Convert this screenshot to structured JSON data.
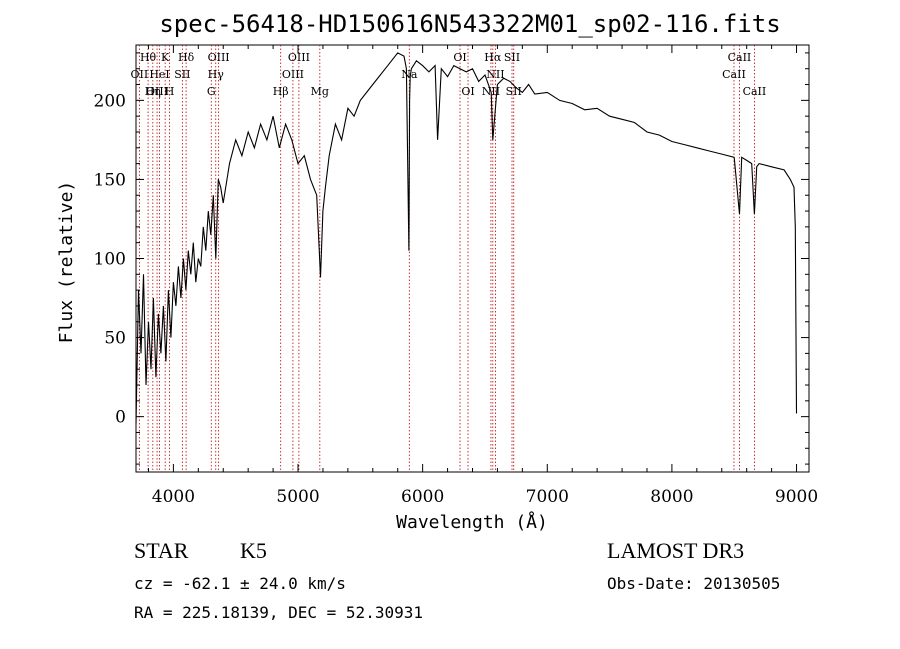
{
  "chart_data": {
    "type": "line",
    "title": "spec-56418-HD150616N543322M01_sp02-116.fits",
    "xlabel": "Wavelength (Å)",
    "ylabel": "Flux (relative)",
    "xlim": [
      3700,
      9100
    ],
    "ylim": [
      -35,
      235
    ],
    "x_ticks": [
      4000,
      5000,
      6000,
      7000,
      8000,
      9000
    ],
    "y_ticks": [
      0,
      50,
      100,
      150,
      200
    ],
    "series": [
      {
        "name": "flux",
        "x": [
          3700,
          3720,
          3740,
          3760,
          3780,
          3800,
          3820,
          3840,
          3860,
          3880,
          3900,
          3920,
          3940,
          3960,
          3980,
          4000,
          4020,
          4040,
          4060,
          4080,
          4100,
          4120,
          4140,
          4160,
          4180,
          4200,
          4220,
          4240,
          4260,
          4280,
          4300,
          4320,
          4340,
          4360,
          4380,
          4400,
          4450,
          4500,
          4550,
          4600,
          4650,
          4700,
          4750,
          4800,
          4850,
          4900,
          4950,
          5000,
          5050,
          5100,
          5150,
          5180,
          5200,
          5220,
          5250,
          5300,
          5350,
          5400,
          5450,
          5500,
          5550,
          5600,
          5650,
          5700,
          5750,
          5800,
          5850,
          5870,
          5890,
          5895,
          5900,
          5910,
          5950,
          6000,
          6050,
          6100,
          6120,
          6150,
          6200,
          6250,
          6300,
          6350,
          6400,
          6450,
          6500,
          6550,
          6563,
          6600,
          6650,
          6700,
          6750,
          6800,
          6850,
          6900,
          7000,
          7100,
          7200,
          7300,
          7400,
          7500,
          7600,
          7700,
          7800,
          7900,
          8000,
          8100,
          8200,
          8300,
          8400,
          8500,
          8542,
          8560,
          8600,
          8640,
          8662,
          8680,
          8700,
          8800,
          8900,
          8950,
          8980,
          8990,
          8995,
          9000
        ],
        "values": [
          -5,
          80,
          40,
          90,
          20,
          60,
          30,
          75,
          25,
          65,
          40,
          70,
          35,
          80,
          50,
          85,
          70,
          95,
          75,
          100,
          80,
          105,
          90,
          110,
          85,
          100,
          95,
          120,
          105,
          130,
          115,
          140,
          100,
          150,
          145,
          135,
          160,
          175,
          165,
          180,
          170,
          185,
          175,
          190,
          170,
          185,
          175,
          160,
          165,
          150,
          140,
          88,
          130,
          145,
          165,
          185,
          175,
          195,
          190,
          200,
          205,
          210,
          215,
          220,
          225,
          230,
          228,
          220,
          105,
          200,
          215,
          220,
          225,
          222,
          218,
          222,
          175,
          220,
          215,
          222,
          220,
          218,
          220,
          212,
          216,
          205,
          175,
          210,
          214,
          212,
          208,
          205,
          210,
          204,
          205,
          200,
          198,
          194,
          195,
          190,
          188,
          186,
          180,
          178,
          174,
          172,
          170,
          168,
          166,
          164,
          128,
          164,
          162,
          160,
          128,
          158,
          160,
          158,
          156,
          150,
          145,
          120,
          60,
          2
        ]
      }
    ],
    "spectral_lines": [
      {
        "label": "Hθ",
        "x": 3797,
        "row": 1
      },
      {
        "label": "OII",
        "x": 3727,
        "row": 2
      },
      {
        "label": "OIII",
        "x": 3869,
        "row": 3
      },
      {
        "label": "K",
        "x": 3934,
        "row": 1
      },
      {
        "label": "HeI",
        "x": 3889,
        "row": 2
      },
      {
        "label": "Hη",
        "x": 3835,
        "row": 3
      },
      {
        "label": "H",
        "x": 3969,
        "row": 3
      },
      {
        "label": "Hδ",
        "x": 4102,
        "row": 1
      },
      {
        "label": "SII",
        "x": 4072,
        "row": 2
      },
      {
        "label": "OIII",
        "x": 4363,
        "row": 1
      },
      {
        "label": "Hγ",
        "x": 4340,
        "row": 2
      },
      {
        "label": "G",
        "x": 4304,
        "row": 3
      },
      {
        "label": "Hβ",
        "x": 4861,
        "row": 3
      },
      {
        "label": "OIII",
        "x": 5007,
        "row": 1
      },
      {
        "label": "OIII",
        "x": 4959,
        "row": 2
      },
      {
        "label": "Mg",
        "x": 5175,
        "row": 3
      },
      {
        "label": "Na",
        "x": 5893,
        "row": 2
      },
      {
        "label": "OI",
        "x": 6300,
        "row": 1
      },
      {
        "label": "OI",
        "x": 6364,
        "row": 3
      },
      {
        "label": "Hα",
        "x": 6563,
        "row": 1
      },
      {
        "label": "SII",
        "x": 6717,
        "row": 1
      },
      {
        "label": "NII",
        "x": 6548,
        "row": 3
      },
      {
        "label": "NII",
        "x": 6584,
        "row": 2
      },
      {
        "label": "SII",
        "x": 6731,
        "row": 3
      },
      {
        "label": "CaII",
        "x": 8498,
        "row": 2
      },
      {
        "label": "CaII",
        "x": 8542,
        "row": 1
      },
      {
        "label": "CaII",
        "x": 8662,
        "row": 3
      }
    ]
  },
  "info": {
    "class": "STAR",
    "subclass": "K5",
    "survey": "LAMOST DR3",
    "cz": "cz = -62.1 ± 24.0 km/s",
    "obs_date": "Obs-Date: 20130505",
    "coords": "RA = 225.18139, DEC =  52.30931"
  }
}
